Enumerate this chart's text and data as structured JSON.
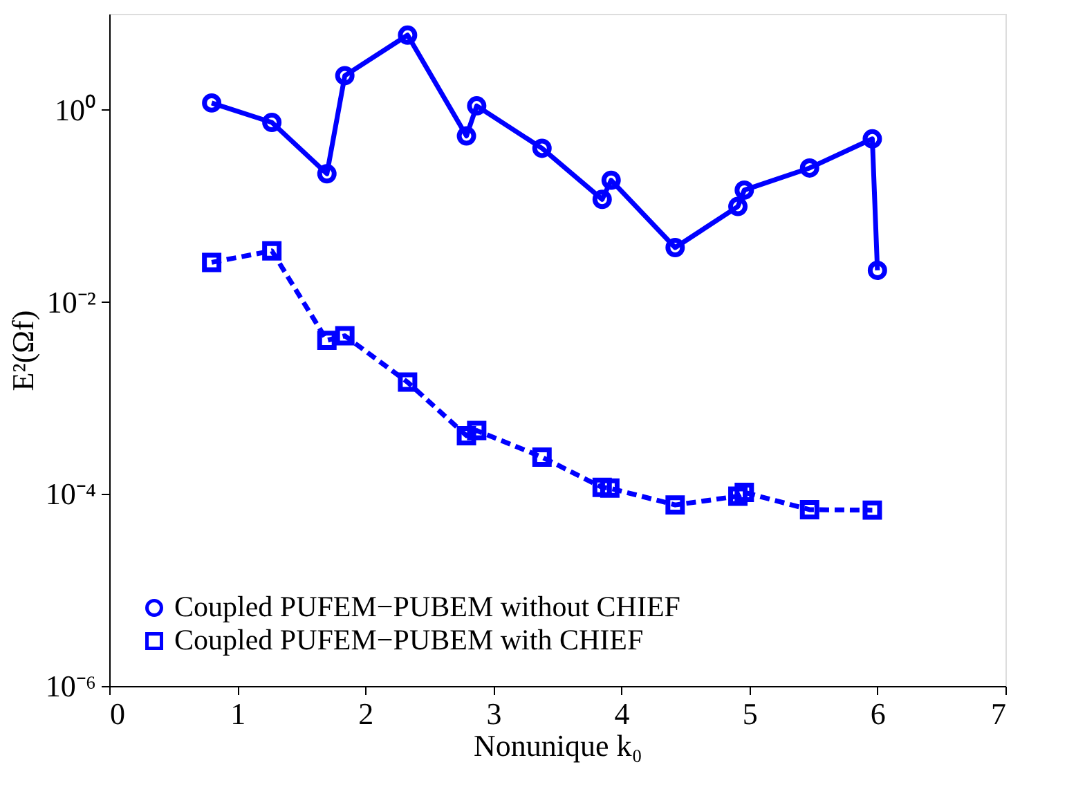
{
  "chart_data": {
    "type": "line",
    "xlabel": "Nonunique k₀",
    "ylabel": "E²(Ωf)",
    "series": [
      {
        "name": "Coupled PUFEM−PUBEM without CHIEF",
        "color": "#0000ff",
        "marker": "circle",
        "line_style": "solid",
        "x": [
          0.8,
          1.27,
          1.7,
          1.84,
          2.33,
          2.79,
          2.87,
          3.38,
          3.85,
          3.92,
          4.42,
          4.91,
          4.96,
          5.47,
          5.96,
          6.0
        ],
        "values": [
          1.18,
          0.74,
          0.216,
          2.27,
          6.0,
          0.535,
          1.1,
          0.398,
          0.117,
          0.185,
          0.0368,
          0.0986,
          0.146,
          0.248,
          0.499,
          0.0213
        ]
      },
      {
        "name": "Coupled PUFEM−PUBEM with CHIEF",
        "color": "#0000ff",
        "marker": "square",
        "line_style": "dashed",
        "x": [
          0.8,
          1.27,
          1.7,
          1.84,
          2.33,
          2.79,
          2.87,
          3.38,
          3.85,
          3.91,
          4.42,
          4.91,
          4.96,
          5.47,
          5.96
        ],
        "values": [
          0.0258,
          0.034,
          0.00398,
          0.00444,
          0.00146,
          0.000405,
          0.000458,
          0.000242,
          0.000117,
          0.000115,
          7.69e-05,
          9.48e-05,
          0.000104,
          6.87e-05,
          6.79e-05
        ]
      }
    ],
    "log": "y",
    "xlim": [
      0,
      7
    ],
    "xticks": [
      0,
      1,
      2,
      3,
      4,
      5,
      6,
      7
    ],
    "ylim": [
      1e-06,
      10
    ],
    "yticks": [
      {
        "value": 1e-06,
        "label": "10⁻⁶"
      },
      {
        "value": 0.0001,
        "label": "10⁻⁴"
      },
      {
        "value": 0.01,
        "label": "10⁻²"
      },
      {
        "value": 1,
        "label": "10⁰"
      }
    ],
    "grid": false,
    "legend": "bottom left"
  }
}
